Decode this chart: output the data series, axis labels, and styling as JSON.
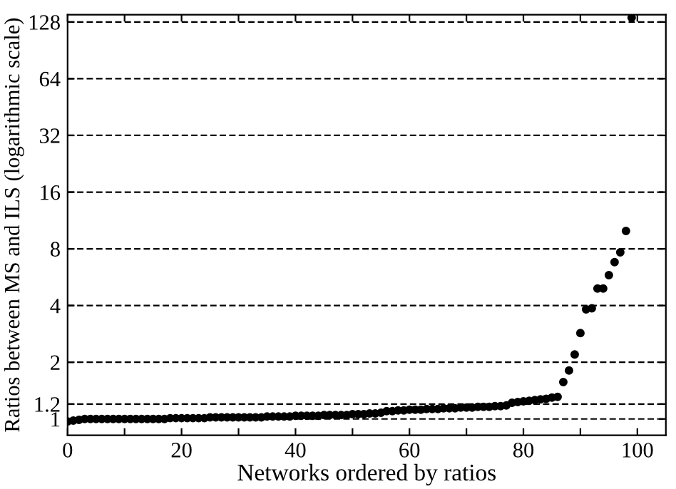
{
  "chart_data": {
    "type": "scatter",
    "xlabel": "Networks ordered by ratios",
    "ylabel": "Ratios between MS and ILS (logarithmic scale)",
    "x": [
      0,
      1,
      2,
      3,
      4,
      5,
      6,
      7,
      8,
      9,
      10,
      11,
      12,
      13,
      14,
      15,
      16,
      17,
      18,
      19,
      20,
      21,
      22,
      23,
      24,
      25,
      26,
      27,
      28,
      29,
      30,
      31,
      32,
      33,
      34,
      35,
      36,
      37,
      38,
      39,
      40,
      41,
      42,
      43,
      44,
      45,
      46,
      47,
      48,
      49,
      50,
      51,
      52,
      53,
      54,
      55,
      56,
      57,
      58,
      59,
      60,
      61,
      62,
      63,
      64,
      65,
      66,
      67,
      68,
      69,
      70,
      71,
      72,
      73,
      74,
      75,
      76,
      77,
      78,
      79,
      80,
      81,
      82,
      83,
      84,
      85,
      86,
      87,
      88,
      89,
      90,
      91,
      92,
      93,
      94,
      95,
      96,
      97,
      98,
      99
    ],
    "series": [
      {
        "color": "#000000",
        "values": [
          0.97,
          0.98,
          0.99,
          1.0,
          1.0,
          1.0,
          1.0,
          1.0,
          1.0,
          1.0,
          1.0,
          1.0,
          1.0,
          1.0,
          1.0,
          1.0,
          1.0,
          1.0,
          1.01,
          1.01,
          1.01,
          1.01,
          1.01,
          1.01,
          1.01,
          1.02,
          1.02,
          1.02,
          1.02,
          1.02,
          1.02,
          1.02,
          1.02,
          1.02,
          1.02,
          1.03,
          1.03,
          1.03,
          1.03,
          1.03,
          1.04,
          1.04,
          1.04,
          1.04,
          1.04,
          1.05,
          1.05,
          1.05,
          1.05,
          1.05,
          1.06,
          1.06,
          1.06,
          1.07,
          1.07,
          1.08,
          1.1,
          1.1,
          1.11,
          1.11,
          1.12,
          1.12,
          1.12,
          1.13,
          1.13,
          1.13,
          1.14,
          1.14,
          1.14,
          1.15,
          1.15,
          1.15,
          1.16,
          1.16,
          1.16,
          1.17,
          1.17,
          1.18,
          1.22,
          1.23,
          1.24,
          1.25,
          1.26,
          1.27,
          1.28,
          1.3,
          1.31,
          1.57,
          1.81,
          2.2,
          2.86,
          3.82,
          3.87,
          4.93,
          4.93,
          5.8,
          6.8,
          7.66,
          9.95,
          135
        ]
      }
    ],
    "log": "y",
    "marker": "circle",
    "grid": "y",
    "xlim": [
      0,
      105
    ],
    "xticks": [
      0,
      {
        "value": 10,
        "label": null
      },
      20,
      {
        "value": 30,
        "label": null
      },
      40,
      {
        "value": 50,
        "label": null
      },
      60,
      {
        "value": 70,
        "label": null
      },
      80,
      {
        "value": 90,
        "label": null
      },
      100
    ],
    "ylim": [
      0.82,
      140
    ],
    "yticks": [
      1,
      1.2,
      2,
      4,
      8,
      16,
      32,
      64,
      128
    ]
  }
}
